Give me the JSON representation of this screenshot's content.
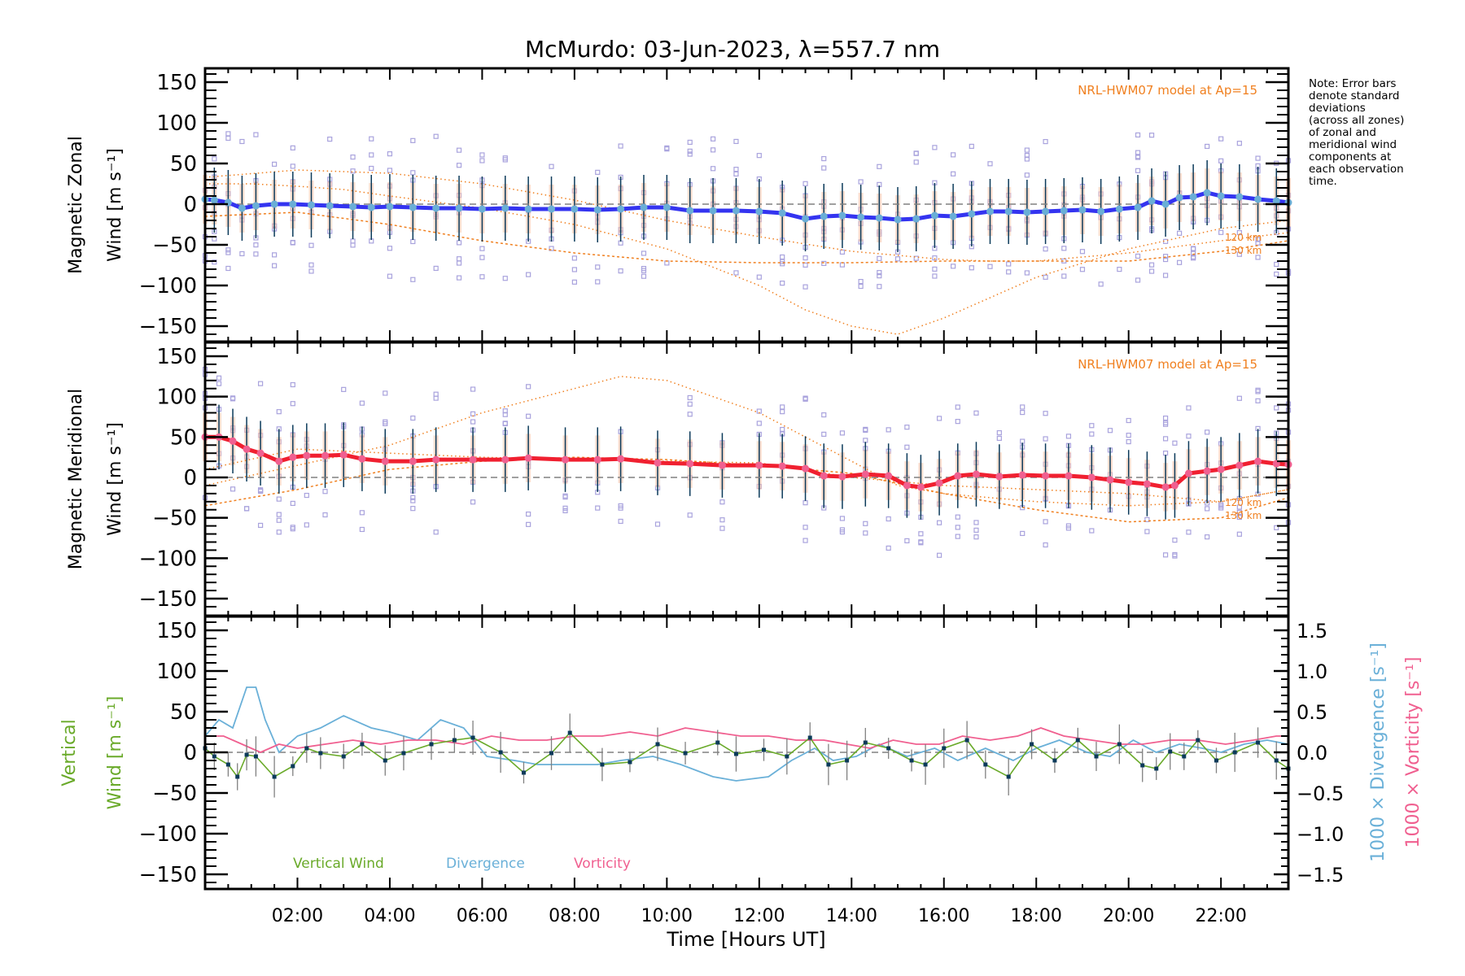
{
  "chart_data": [
    {
      "type": "line",
      "panel": "zonal",
      "title": "McMurdo: 03-Jun-2023, λ=557.7 nm",
      "ylabel_line1": "Magnetic Zonal",
      "ylabel_line2": "Wind [m s⁻¹]",
      "ylim": [
        -165,
        165
      ],
      "yticks": [
        150,
        100,
        50,
        0,
        -50,
        -100,
        -150
      ],
      "model_label": "NRL-HWM07 model at Ap=15",
      "model_alt_labels": [
        "120 km",
        "130 km"
      ],
      "colors": {
        "mean": "#3434f0",
        "points": "#6aaed6",
        "errorbar": "#0b3a5a",
        "scatter": "#a9a3dd",
        "model": "#f08020"
      },
      "series": [
        {
          "name": "Mean zonal wind",
          "x": [
            0.0,
            0.2,
            0.5,
            0.8,
            1.1,
            1.5,
            1.9,
            2.3,
            2.7,
            3.2,
            3.6,
            4.0,
            4.5,
            5.0,
            5.5,
            6.0,
            6.5,
            7.0,
            7.5,
            8.0,
            8.5,
            9.0,
            9.5,
            10.0,
            10.5,
            11.0,
            11.5,
            12.0,
            12.5,
            13.0,
            13.4,
            13.8,
            14.2,
            14.6,
            15.0,
            15.4,
            15.8,
            16.2,
            16.6,
            17.0,
            17.4,
            17.8,
            18.2,
            18.6,
            19.0,
            19.4,
            19.8,
            20.2,
            20.5,
            20.8,
            21.1,
            21.4,
            21.7,
            22.0,
            22.4,
            22.8,
            23.2,
            23.46
          ],
          "y": [
            6,
            5,
            2,
            -5,
            -2,
            0,
            0,
            -1,
            -2,
            -3,
            -4,
            -3,
            -4,
            -5,
            -5,
            -6,
            -5,
            -6,
            -6,
            -6,
            -7,
            -6,
            -4,
            -4,
            -8,
            -8,
            -8,
            -9,
            -11,
            -18,
            -15,
            -14,
            -16,
            -17,
            -19,
            -18,
            -14,
            -15,
            -12,
            -9,
            -9,
            -10,
            -9,
            -8,
            -7,
            -9,
            -6,
            -4,
            4,
            0,
            8,
            9,
            14,
            10,
            9,
            6,
            4,
            2
          ]
        },
        {
          "name": "Model 120 km",
          "x": [
            0,
            2,
            4,
            6,
            8,
            10,
            12,
            14,
            16,
            17,
            18,
            20,
            22,
            23.46
          ],
          "y": [
            33,
            42,
            38,
            25,
            5,
            -20,
            -40,
            -58,
            -68,
            -70,
            -70,
            -60,
            -45,
            -35
          ]
        },
        {
          "name": "Model 130 km",
          "x": [
            0,
            2,
            4,
            6,
            8,
            10,
            12,
            14,
            16,
            18,
            20,
            22,
            23.46
          ],
          "y": [
            -15,
            -10,
            -25,
            -45,
            -60,
            -70,
            -72,
            -72,
            -70,
            -70,
            -70,
            -58,
            -45
          ]
        },
        {
          "name": "Model 120 km (alt)",
          "x": [
            0,
            1,
            2,
            3,
            4,
            6,
            8,
            10,
            12,
            13,
            14,
            15,
            16,
            18,
            20,
            22,
            23.46
          ],
          "y": [
            25,
            25,
            22,
            18,
            10,
            -5,
            -25,
            -55,
            -100,
            -130,
            -150,
            -160,
            -140,
            -90,
            -55,
            -30,
            -20
          ]
        }
      ]
    },
    {
      "type": "line",
      "panel": "meridional",
      "ylabel_line1": "Magnetic Meridional",
      "ylabel_line2": "Wind [m s⁻¹]",
      "ylim": [
        -165,
        165
      ],
      "yticks": [
        150,
        100,
        50,
        0,
        -50,
        -100,
        -150
      ],
      "model_label": "NRL-HWM07 model at Ap=15",
      "model_alt_labels": [
        "120 km",
        "130 km"
      ],
      "colors": {
        "mean": "#f02030",
        "points": "#f06090",
        "errorbar": "#0b3a5a",
        "scatter": "#a9a3dd",
        "model": "#f08020"
      },
      "series": [
        {
          "name": "Mean meridional wind",
          "x": [
            0.0,
            0.3,
            0.6,
            0.9,
            1.2,
            1.6,
            1.9,
            2.2,
            2.6,
            3.0,
            3.4,
            3.9,
            4.5,
            5.0,
            5.8,
            6.5,
            7.0,
            7.8,
            8.5,
            9.0,
            9.8,
            10.5,
            11.2,
            12.0,
            12.5,
            13.0,
            13.4,
            13.8,
            14.3,
            14.8,
            15.2,
            15.5,
            15.9,
            16.3,
            16.7,
            17.2,
            17.7,
            18.2,
            18.7,
            19.2,
            19.6,
            20.0,
            20.4,
            20.8,
            21.0,
            21.3,
            21.7,
            22.0,
            22.4,
            22.8,
            23.2,
            23.46
          ],
          "y": [
            50,
            50,
            45,
            35,
            30,
            20,
            25,
            27,
            27,
            28,
            23,
            20,
            20,
            22,
            22,
            22,
            24,
            22,
            22,
            23,
            18,
            17,
            15,
            15,
            14,
            11,
            2,
            1,
            4,
            2,
            -10,
            -12,
            -7,
            2,
            4,
            1,
            3,
            2,
            2,
            0,
            -3,
            -6,
            -8,
            -12,
            -10,
            5,
            8,
            10,
            15,
            20,
            17,
            16
          ]
        },
        {
          "name": "Model 120 km",
          "x": [
            0,
            2,
            4,
            6,
            8,
            9,
            10,
            12,
            14,
            15,
            16,
            18,
            20,
            22,
            23.46
          ],
          "y": [
            -10,
            15,
            40,
            80,
            110,
            125,
            120,
            80,
            20,
            -10,
            -20,
            -30,
            -35,
            -30,
            -15
          ]
        },
        {
          "name": "Model 130 km",
          "x": [
            0,
            2,
            4,
            6,
            8,
            10,
            12,
            14,
            16,
            18,
            20,
            22,
            23.46
          ],
          "y": [
            -35,
            -15,
            10,
            20,
            25,
            22,
            15,
            5,
            -20,
            -40,
            -55,
            -50,
            -25
          ]
        },
        {
          "name": "Model 120 km (alt)",
          "x": [
            0,
            2,
            4,
            6,
            8,
            10,
            12,
            14,
            16,
            18,
            20,
            22,
            23.46
          ],
          "y": [
            10,
            35,
            30,
            25,
            22,
            20,
            18,
            0,
            -10,
            -15,
            -20,
            -30,
            -15
          ]
        }
      ]
    },
    {
      "type": "line",
      "panel": "vertical",
      "ylabel_line1": "Vertical",
      "ylabel_line2": "Wind [m s⁻¹]",
      "y2label_div": "1000 × Divergence [s⁻¹]",
      "y2label_vor": "1000 × Vorticity [s⁻¹]",
      "ylim": [
        -165,
        165
      ],
      "yticks": [
        150,
        100,
        50,
        0,
        -50,
        -100,
        -150
      ],
      "y2lim": [
        -1.65,
        1.65
      ],
      "y2ticks": [
        "1.5",
        "1.0",
        "0.5",
        "0.0",
        "−0.5",
        "−1.0",
        "−1.5"
      ],
      "xlabel": "Time [Hours UT]",
      "xticks": [
        "02:00",
        "04:00",
        "06:00",
        "08:00",
        "10:00",
        "12:00",
        "14:00",
        "16:00",
        "18:00",
        "20:00",
        "22:00"
      ],
      "xlim": [
        0,
        23.46
      ],
      "legend": [
        "Vertical Wind",
        "Divergence",
        "Vorticity"
      ],
      "legend_placement": "bottom-left",
      "colors": {
        "vertical": "#6aaa2a",
        "divergence": "#6ab0d8",
        "vorticity": "#f06090",
        "point": "#0b3a5a",
        "errorbar": "#808080"
      },
      "series": [
        {
          "name": "Vertical Wind",
          "x": [
            0.0,
            0.2,
            0.5,
            0.7,
            0.9,
            1.1,
            1.5,
            1.9,
            2.2,
            2.5,
            3.0,
            3.4,
            3.9,
            4.3,
            4.9,
            5.4,
            5.8,
            6.4,
            6.9,
            7.5,
            7.9,
            8.6,
            9.2,
            9.8,
            10.4,
            11.1,
            11.5,
            12.1,
            12.6,
            13.1,
            13.5,
            13.9,
            14.3,
            14.8,
            15.3,
            15.6,
            16.0,
            16.5,
            16.9,
            17.4,
            17.9,
            18.4,
            18.9,
            19.3,
            19.8,
            20.3,
            20.6,
            20.9,
            21.2,
            21.5,
            21.9,
            22.3,
            22.8,
            23.2,
            23.46
          ],
          "y": [
            5,
            -5,
            -15,
            -30,
            -3,
            -5,
            -30,
            -17,
            5,
            -1,
            -5,
            10,
            -10,
            -1,
            10,
            15,
            18,
            0,
            -25,
            -1,
            24,
            -15,
            -12,
            10,
            -1,
            12,
            -2,
            3,
            -5,
            18,
            -15,
            -10,
            12,
            5,
            -10,
            -15,
            5,
            15,
            -15,
            -30,
            10,
            -10,
            15,
            -5,
            10,
            -16,
            -20,
            1,
            -5,
            15,
            -10,
            0,
            12,
            -10,
            -20
          ]
        },
        {
          "name": "Divergence",
          "x": [
            0.0,
            0.3,
            0.6,
            0.9,
            1.1,
            1.3,
            1.6,
            2.0,
            2.5,
            3.0,
            3.6,
            4.0,
            4.6,
            5.1,
            5.6,
            6.1,
            6.7,
            7.2,
            7.8,
            8.5,
            9.0,
            9.7,
            10.3,
            11.0,
            11.5,
            12.2,
            12.7,
            13.2,
            13.6,
            14.1,
            14.6,
            15.2,
            15.8,
            16.3,
            16.9,
            17.5,
            18.0,
            18.5,
            19.1,
            19.6,
            20.1,
            20.6,
            21.1,
            21.6,
            22.0,
            22.5,
            23.0,
            23.46
          ],
          "y": [
            0.2,
            0.4,
            0.3,
            0.8,
            0.8,
            0.4,
            0.0,
            0.2,
            0.3,
            0.45,
            0.3,
            0.25,
            0.15,
            0.4,
            0.3,
            -0.05,
            -0.1,
            -0.15,
            -0.15,
            -0.15,
            -0.1,
            -0.05,
            -0.15,
            -0.3,
            -0.35,
            -0.3,
            -0.1,
            0.05,
            -0.1,
            -0.05,
            0.1,
            -0.05,
            0.05,
            -0.1,
            0.05,
            -0.1,
            0.05,
            0.15,
            0.0,
            -0.05,
            0.15,
            0.0,
            0.1,
            0.05,
            0.0,
            0.1,
            0.15,
            0.1
          ]
        },
        {
          "name": "Vorticity",
          "x": [
            0.0,
            0.4,
            0.8,
            1.2,
            1.6,
            2.0,
            2.6,
            3.2,
            3.8,
            4.4,
            5.0,
            5.6,
            6.2,
            6.8,
            7.4,
            8.0,
            8.6,
            9.2,
            9.8,
            10.4,
            11.0,
            11.6,
            12.2,
            12.8,
            13.4,
            13.9,
            14.4,
            14.9,
            15.4,
            15.9,
            16.4,
            17.0,
            17.6,
            18.1,
            18.6,
            19.2,
            19.8,
            20.3,
            20.9,
            21.5,
            22.1,
            22.7,
            23.2,
            23.46
          ],
          "y": [
            0.2,
            0.2,
            0.1,
            0.0,
            0.1,
            0.05,
            0.1,
            0.15,
            0.1,
            0.15,
            0.15,
            0.1,
            0.2,
            0.15,
            0.15,
            0.2,
            0.2,
            0.25,
            0.2,
            0.3,
            0.25,
            0.2,
            0.2,
            0.15,
            0.15,
            0.1,
            0.05,
            0.15,
            0.1,
            0.1,
            0.2,
            0.15,
            0.2,
            0.3,
            0.2,
            0.15,
            0.1,
            0.1,
            0.15,
            0.15,
            0.1,
            0.15,
            0.2,
            0.2
          ]
        }
      ]
    }
  ],
  "note": {
    "lines": [
      "Note: Error bars",
      "denote standard",
      "deviations",
      "(across all zones)",
      "of zonal and",
      "meridional wind",
      "components at",
      "each observation",
      "time."
    ]
  }
}
